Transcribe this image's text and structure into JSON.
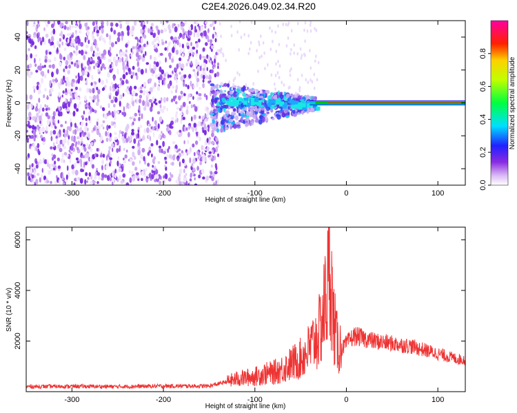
{
  "title": "C2E4.2026.049.02.34.R20",
  "colors": {
    "snr_line": "#ee3333",
    "spectrogram_noise": "#8a2be2",
    "carrier": "#00c000"
  },
  "chart_data": [
    {
      "type": "heatmap",
      "xlabel": "Height of straight line (km)",
      "ylabel": "Frequency (Hz)",
      "xlim": [
        -350,
        130
      ],
      "ylim": [
        -50,
        50
      ],
      "xticks": [
        -300,
        -200,
        -100,
        0,
        100
      ],
      "xtick_labels": [
        "-300",
        "-200",
        "-100",
        "0",
        "100"
      ],
      "yticks": [
        -40,
        -20,
        0,
        20,
        40
      ],
      "ytick_labels": [
        "-40",
        "-20",
        "0",
        "20",
        "40"
      ],
      "colorbar": {
        "label": "Normalized spectral amplitude",
        "range": [
          0,
          1
        ],
        "ticks": [
          0.0,
          0.2,
          0.4,
          0.6,
          0.8
        ],
        "tick_labels": [
          "0.0",
          "0.2",
          "0.4",
          "0.6",
          "0.8"
        ],
        "colormap": "rainbow (white-violet-blue-cyan-green-yellow-red-magenta)"
      },
      "features": {
        "noise_region_x": [
          -350,
          -140
        ],
        "scatter_region_x": [
          -140,
          -40
        ],
        "carrier_frequency_hz": 0,
        "carrier_start_x": -40
      }
    },
    {
      "type": "line",
      "xlabel": "Height of straight line (km)",
      "ylabel": "SNR (10 * v/v)",
      "xlim": [
        -350,
        130
      ],
      "ylim": [
        0,
        6500
      ],
      "xticks": [
        -300,
        -200,
        -100,
        0,
        100
      ],
      "xtick_labels": [
        "-300",
        "-200",
        "-100",
        "0",
        "100"
      ],
      "yticks": [
        2000,
        4000,
        6000
      ],
      "ytick_labels": [
        "2000",
        "4000",
        "6000"
      ],
      "grid": false,
      "series": [
        {
          "x": [
            -350,
            -300,
            -250,
            -200,
            -150,
            -130,
            -120,
            -110,
            -100,
            -90,
            -80,
            -70,
            -60,
            -50,
            -40,
            -30,
            -25,
            -20,
            -17,
            -15,
            -10,
            -5,
            0,
            5,
            10,
            20,
            30,
            40,
            50,
            60,
            70,
            80,
            90,
            100,
            110,
            120,
            130
          ],
          "values": [
            200,
            210,
            200,
            220,
            220,
            400,
            500,
            550,
            600,
            700,
            750,
            900,
            1100,
            1300,
            1700,
            2300,
            3100,
            4300,
            5300,
            3000,
            1900,
            1700,
            1900,
            2100,
            2200,
            2100,
            2000,
            1950,
            1900,
            1850,
            1800,
            1700,
            1600,
            1500,
            1400,
            1300,
            1250
          ]
        }
      ]
    }
  ]
}
